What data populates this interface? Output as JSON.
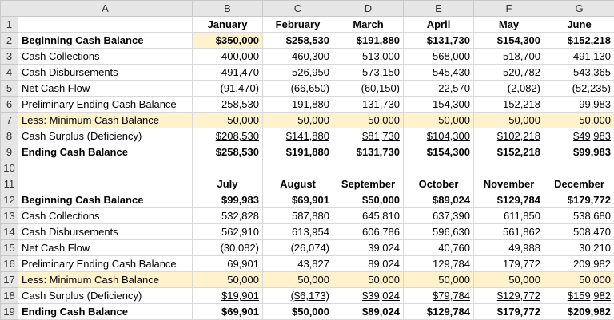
{
  "column_letters": [
    "A",
    "B",
    "C",
    "D",
    "E",
    "F",
    "G"
  ],
  "row_numbers": [
    1,
    2,
    3,
    4,
    5,
    6,
    7,
    8,
    9,
    10,
    11,
    12,
    13,
    14,
    15,
    16,
    17,
    18,
    19
  ],
  "sections": [
    {
      "months": [
        "January",
        "February",
        "March",
        "April",
        "May",
        "June"
      ],
      "lines": [
        {
          "label": "Beginning Cash Balance",
          "values": [
            "$350,000",
            "$258,530",
            "$191,880",
            "$131,730",
            "$154,300",
            "$152,218"
          ]
        },
        {
          "label": "Cash Collections",
          "values": [
            "400,000",
            "460,300",
            "513,000",
            "568,000",
            "518,700",
            "491,130"
          ]
        },
        {
          "label": "Cash Disbursements",
          "values": [
            "491,470",
            "526,950",
            "573,150",
            "545,430",
            "520,782",
            "543,365"
          ]
        },
        {
          "label": "Net Cash Flow",
          "values": [
            "(91,470)",
            "(66,650)",
            "(60,150)",
            "22,570",
            "(2,082)",
            "(52,235)"
          ]
        },
        {
          "label": "Preliminary Ending Cash Balance",
          "values": [
            "258,530",
            "191,880",
            "131,730",
            "154,300",
            "152,218",
            "99,983"
          ]
        },
        {
          "label": "Less: Minimum Cash Balance",
          "values": [
            "50,000",
            "50,000",
            "50,000",
            "50,000",
            "50,000",
            "50,000"
          ]
        },
        {
          "label": "Cash Surplus (Deficiency)",
          "values": [
            "$208,530",
            "$141,880",
            "$81,730",
            "$104,300",
            "$102,218",
            "$49,983"
          ]
        },
        {
          "label": "Ending Cash Balance",
          "values": [
            "$258,530",
            "$191,880",
            "$131,730",
            "$154,300",
            "$152,218",
            "$99,983"
          ]
        }
      ]
    },
    {
      "months": [
        "July",
        "August",
        "September",
        "October",
        "November",
        "December"
      ],
      "lines": [
        {
          "label": "Beginning Cash Balance",
          "values": [
            "$99,983",
            "$69,901",
            "$50,000",
            "$89,024",
            "$129,784",
            "$179,772"
          ]
        },
        {
          "label": "Cash Collections",
          "values": [
            "532,828",
            "587,880",
            "645,810",
            "637,390",
            "611,850",
            "538,680"
          ]
        },
        {
          "label": "Cash Disbursements",
          "values": [
            "562,910",
            "613,954",
            "606,786",
            "596,630",
            "561,862",
            "508,470"
          ]
        },
        {
          "label": "Net Cash Flow",
          "values": [
            "(30,082)",
            "(26,074)",
            "39,024",
            "40,760",
            "49,988",
            "30,210"
          ]
        },
        {
          "label": "Preliminary Ending Cash Balance",
          "values": [
            "69,901",
            "43,827",
            "89,024",
            "129,784",
            "179,772",
            "209,982"
          ]
        },
        {
          "label": "Less: Minimum Cash Balance",
          "values": [
            "50,000",
            "50,000",
            "50,000",
            "50,000",
            "50,000",
            "50,000"
          ]
        },
        {
          "label": "Cash Surplus (Deficiency)",
          "values": [
            "$19,901",
            "($6,173)",
            "$39,024",
            "$79,784",
            "$129,772",
            "$159,982"
          ]
        },
        {
          "label": "Ending Cash Balance",
          "values": [
            "$69,901",
            "$50,000",
            "$89,024",
            "$129,784",
            "$179,772",
            "$209,982"
          ]
        }
      ]
    }
  ]
}
